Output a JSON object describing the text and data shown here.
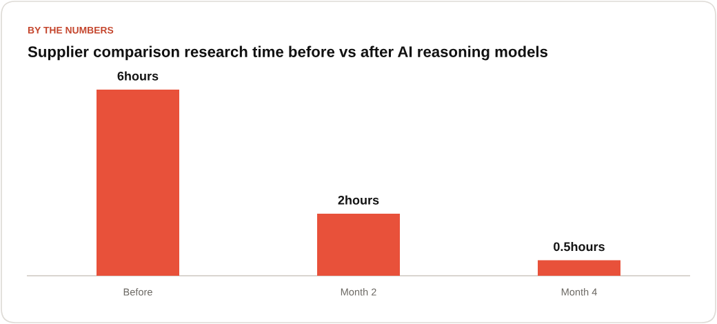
{
  "chart_data": {
    "type": "bar",
    "title": "Supplier comparison research time before vs after AI reasoning models",
    "subtitle": "BY THE NUMBERS",
    "categories": [
      "Before",
      "Month 2",
      "Month 4"
    ],
    "values": [
      6,
      2,
      0.5
    ],
    "value_labels": [
      "6hours",
      "2hours",
      "0.5hours"
    ],
    "color": "#e8513a",
    "tick_labels": "x"
  }
}
